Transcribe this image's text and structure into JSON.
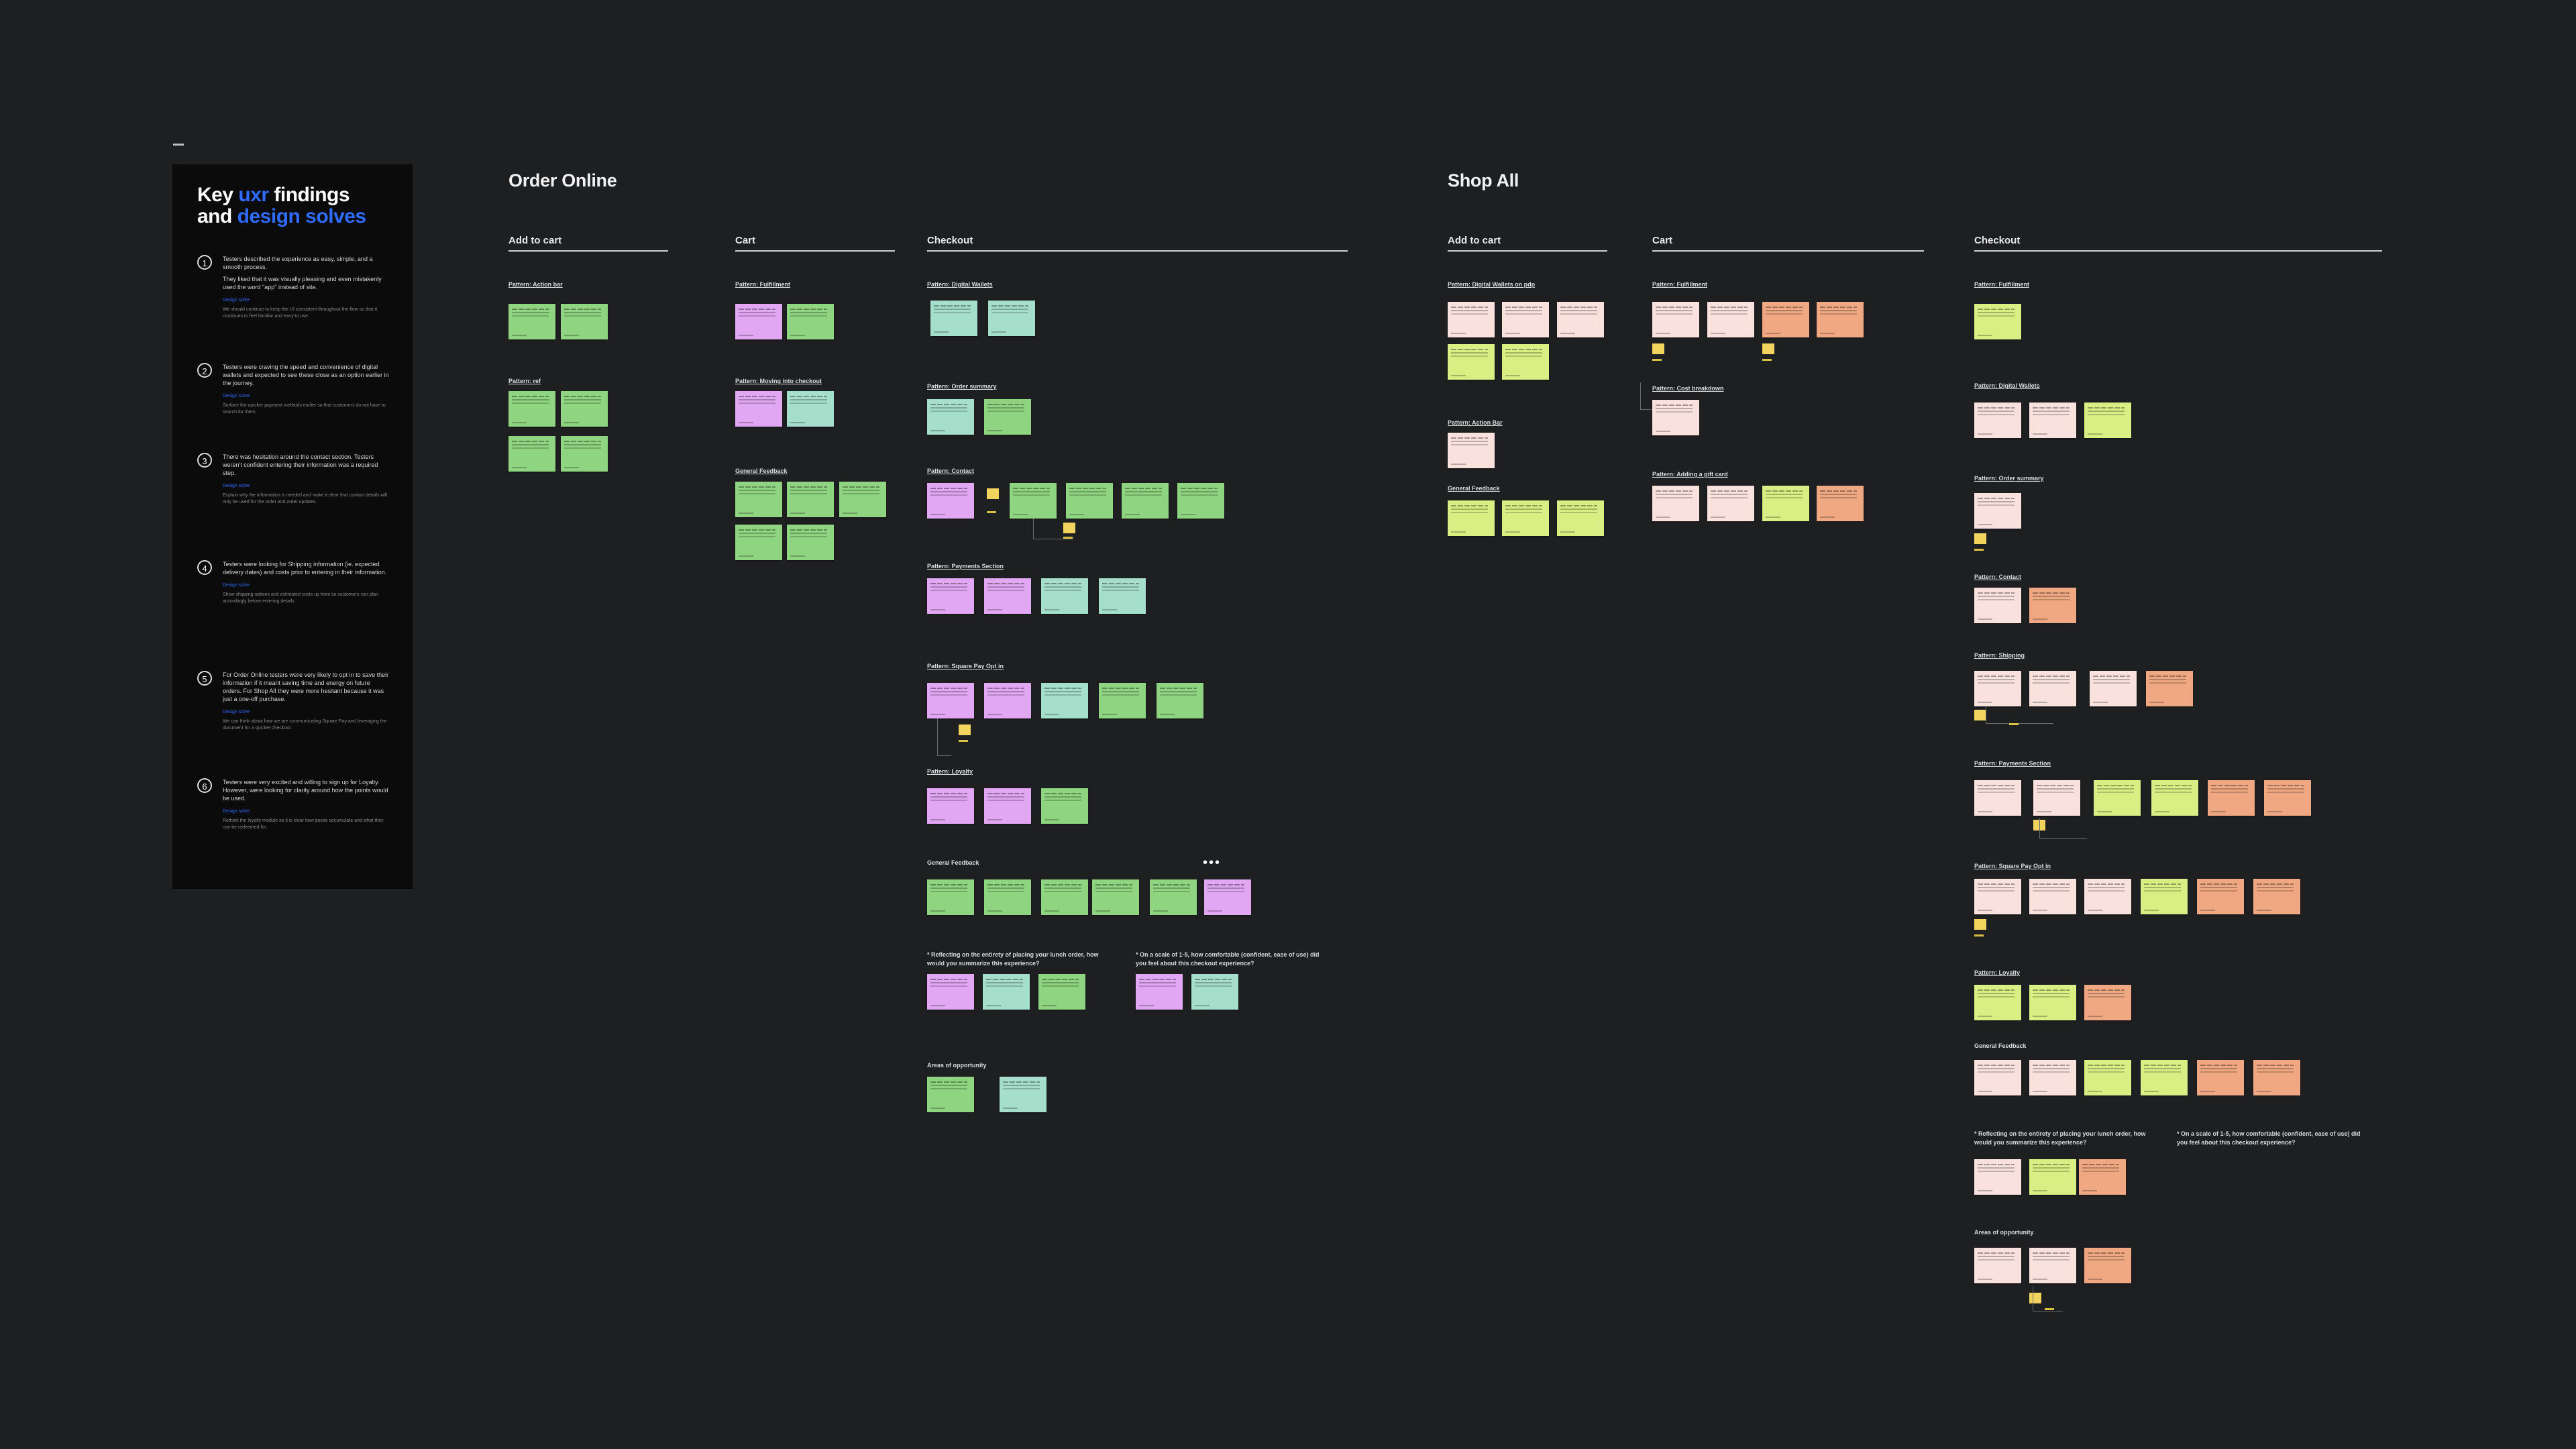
{
  "panel": {
    "title_line1_prefix": "Key ",
    "title_line1_highlight": "uxr",
    "title_line1_suffix": " findings",
    "title_line2_prefix": "and ",
    "title_line2_highlight": "design solves",
    "solve_label": "Design solve",
    "findings": [
      {
        "num": "1",
        "text": "Testers described the experience as easy, simple, and a smooth process.",
        "text2": "They liked that it was visually pleasing and even mistakenly used the word \"app\" instead of site.",
        "solve": "We should continue to keep the UI consistent throughout the flow so that it continues to feel familiar and easy to use."
      },
      {
        "num": "2",
        "text": "Testers were craving the speed and convenience of digital wallets and expected to see these close as an option earlier in the journey.",
        "solve": "Surface the quicker payment methods earlier so that customers do not have to search for them."
      },
      {
        "num": "3",
        "text": "There was hesitation around the contact section. Testers weren't confident entering their information was a required step.",
        "solve": "Explain why the information is needed and make it clear that contact details will only be used for the order and order updates."
      },
      {
        "num": "4",
        "text": "Testers were looking for Shipping information (ie. expected delivery dates) and costs prior to entering in their information.",
        "solve": "Show shipping options and estimated costs up front so customers can plan accordingly before entering details."
      },
      {
        "num": "5",
        "text": "For Order Online testers were very likely to opt in to save their information if it meant saving time and energy on future orders. For Shop All they were more hesitant because it was just a one-off purchase.",
        "solve": "We can think about how we are communicating Square Pay and leveraging the document for a quicker checkout."
      },
      {
        "num": "6",
        "text": "Testers were very excited and willing to sign up for Loyalty. However, were looking for clarity around how the points would be used.",
        "solve": "Rethink the loyalty module so it is clear how points accumulate and what they can be redeemed for."
      }
    ]
  },
  "order_online": {
    "title": "Order Online",
    "col_add": "Add to cart",
    "col_cart": "Cart",
    "col_checkout": "Checkout",
    "add": {
      "p1": "Pattern: Action bar",
      "p2": "Pattern: ref"
    },
    "cart": {
      "p1": "Pattern: Fulfillment",
      "p2": "Pattern: Moving into checkout",
      "p3": "General Feedback"
    },
    "checkout": {
      "p1": "Pattern: Digital Wallets",
      "p2": "Pattern: Order summary",
      "p3": "Pattern: Contact",
      "p4": "Pattern: Payments Section",
      "p5": "Pattern: Square Pay Opt in",
      "p6": "Pattern: Loyalty",
      "p7": "General Feedback",
      "q1": "* Reflecting on the entirety of placing your lunch order, how would you summarize this experience?",
      "q2": "* On a scale of 1-5, how comfortable (confident, ease of use) did you feel about this checkout experience?",
      "p8": "Areas of opportunity",
      "dots": "•••"
    }
  },
  "shop_all": {
    "title": "Shop All",
    "col_add": "Add to cart",
    "col_cart": "Cart",
    "col_checkout": "Checkout",
    "add": {
      "p1": "Pattern: Digital Wallets on pdp",
      "p2": "Pattern: Action Bar",
      "p3": "General Feedback"
    },
    "cart": {
      "p1": "Pattern: Fulfillment",
      "p2": "Pattern: Cost breakdown",
      "p3": "Pattern: Adding a gift card"
    },
    "checkout": {
      "p1": "Pattern: Fulfillment",
      "p2": "Pattern: Digital Wallets",
      "p3": "Pattern: Order summary",
      "p4": "Pattern: Contact",
      "p5": "Pattern: Shipping",
      "p6": "Pattern: Payments Section",
      "p7": "Pattern: Square Pay Opt in",
      "p8": "Pattern: Loyalty",
      "p9": "General Feedback",
      "q1": "* Reflecting on the entirety of placing your lunch order, how would you summarize this experience?",
      "q2": "* On a scale of 1-5, how comfortable (confident, ease of use) did you feel about this checkout experience?",
      "p10": "Areas of opportunity"
    }
  },
  "colors": {
    "background": "#1e1f21",
    "accent_blue": "#2f6bff",
    "sticky_green": "#8fd480",
    "sticky_pink": "#e1a7f2",
    "sticky_teal": "#a5dfcb",
    "sticky_lime": "#d9ef84",
    "sticky_blush": "#f9e1de",
    "sticky_orange": "#f0a883",
    "sticky_yellow": "#f2d35e"
  }
}
